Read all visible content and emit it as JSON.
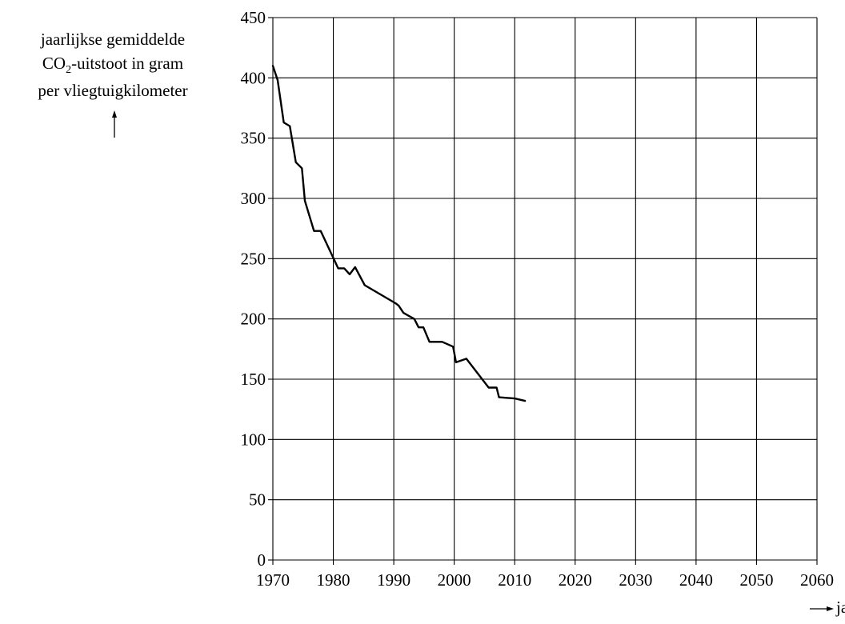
{
  "chart_data": {
    "type": "line",
    "title": "",
    "ylabel_lines": [
      "jaarlijkse gemiddelde",
      "CO",
      "2",
      "-uitstoot in gram",
      "per vliegtuigkilometer"
    ],
    "xlabel": "jaar",
    "xlim": [
      1970,
      2060
    ],
    "ylim": [
      0,
      450
    ],
    "x_ticks": [
      1970,
      1980,
      1990,
      2000,
      2010,
      2020,
      2030,
      2040,
      2050,
      2060
    ],
    "y_ticks": [
      0,
      50,
      100,
      150,
      200,
      250,
      300,
      350,
      400,
      450
    ],
    "grid": true,
    "series": [
      {
        "color": "#000000",
        "x": [
          1970,
          1970.8,
          1971.8,
          1972.8,
          1973.8,
          1974.8,
          1975.3,
          1976.8,
          1977.9,
          1978.1,
          1980.8,
          1981.8,
          1982.7,
          1983.6,
          1985.2,
          1990.3,
          1990.8,
          1991.6,
          1993.4,
          1994.1,
          1994.9,
          1995.9,
          1998.0,
          1999.8,
          2000.3,
          2002.0,
          2005.7,
          2007.0,
          2007.4,
          2010.0,
          2011.7
        ],
        "y": [
          410,
          398,
          363,
          360,
          330,
          325,
          298,
          273,
          273,
          271,
          242,
          242,
          237,
          243,
          228,
          213,
          211,
          205,
          200,
          193,
          193,
          181,
          181,
          177,
          164,
          167,
          143,
          143,
          135,
          134,
          132
        ]
      }
    ]
  }
}
